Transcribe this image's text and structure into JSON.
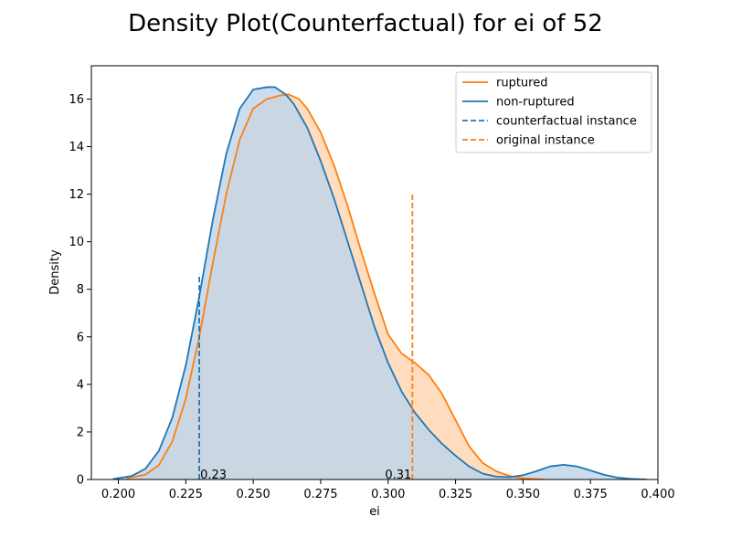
{
  "chart_data": {
    "type": "line",
    "title": "Density Plot(Counterfactual) for ei of 52",
    "xlabel": "ei",
    "ylabel": "Density",
    "xlim": [
      0.19,
      0.4
    ],
    "ylim": [
      0,
      17.4
    ],
    "x_ticks": [
      0.2,
      0.225,
      0.25,
      0.275,
      0.3,
      0.325,
      0.35,
      0.375,
      0.4
    ],
    "x_tick_labels": [
      "0.200",
      "0.225",
      "0.250",
      "0.275",
      "0.300",
      "0.325",
      "0.350",
      "0.375",
      "0.400"
    ],
    "y_ticks": [
      0,
      2,
      4,
      6,
      8,
      10,
      12,
      14,
      16
    ],
    "y_tick_labels": [
      "0",
      "2",
      "4",
      "6",
      "8",
      "10",
      "12",
      "14",
      "16"
    ],
    "grid": false,
    "legend_position": "top-right",
    "series": [
      {
        "name": "ruptured",
        "color": "#ff7f0e",
        "fill": "#ffd7b3",
        "x": [
          0.203,
          0.21,
          0.215,
          0.22,
          0.225,
          0.23,
          0.235,
          0.24,
          0.245,
          0.25,
          0.255,
          0.26,
          0.263,
          0.267,
          0.27,
          0.275,
          0.28,
          0.285,
          0.29,
          0.295,
          0.3,
          0.305,
          0.31,
          0.315,
          0.32,
          0.325,
          0.33,
          0.335,
          0.34,
          0.345,
          0.35,
          0.358
        ],
        "y": [
          0.05,
          0.2,
          0.6,
          1.6,
          3.4,
          6.0,
          9.1,
          12.0,
          14.3,
          15.6,
          16.0,
          16.15,
          16.2,
          16.0,
          15.6,
          14.6,
          13.2,
          11.5,
          9.6,
          7.8,
          6.1,
          5.3,
          4.9,
          4.4,
          3.6,
          2.5,
          1.4,
          0.7,
          0.35,
          0.15,
          0.05,
          0.0
        ]
      },
      {
        "name": "non-ruptured",
        "color": "#1f77b4",
        "fill": "#c1d6ea",
        "x": [
          0.198,
          0.205,
          0.21,
          0.215,
          0.22,
          0.225,
          0.23,
          0.235,
          0.24,
          0.245,
          0.25,
          0.255,
          0.258,
          0.262,
          0.265,
          0.27,
          0.275,
          0.28,
          0.285,
          0.29,
          0.295,
          0.3,
          0.305,
          0.31,
          0.315,
          0.32,
          0.325,
          0.33,
          0.335,
          0.34,
          0.345,
          0.35,
          0.355,
          0.36,
          0.365,
          0.37,
          0.375,
          0.38,
          0.385,
          0.39,
          0.396
        ],
        "y": [
          0.02,
          0.15,
          0.45,
          1.2,
          2.6,
          4.8,
          7.7,
          10.9,
          13.7,
          15.6,
          16.4,
          16.5,
          16.5,
          16.2,
          15.8,
          14.8,
          13.4,
          11.8,
          10.0,
          8.2,
          6.4,
          4.9,
          3.7,
          2.8,
          2.1,
          1.5,
          1.0,
          0.55,
          0.25,
          0.12,
          0.1,
          0.18,
          0.35,
          0.55,
          0.62,
          0.55,
          0.38,
          0.2,
          0.08,
          0.03,
          0.0
        ]
      }
    ],
    "vlines": [
      {
        "name": "counterfactual instance",
        "x": 0.23,
        "ymax": 8.65,
        "color": "#1f77b4",
        "label": "0.23"
      },
      {
        "name": "original instance",
        "x": 0.309,
        "ymax": 12.1,
        "color": "#ff7f0e",
        "label": "0.31"
      }
    ],
    "legend": [
      {
        "label": "ruptured",
        "color": "#ff7f0e",
        "style": "solid"
      },
      {
        "label": "non-ruptured",
        "color": "#1f77b4",
        "style": "solid"
      },
      {
        "label": "counterfactual instance",
        "color": "#1f77b4",
        "style": "dashed"
      },
      {
        "label": "original instance",
        "color": "#ff7f0e",
        "style": "dashed"
      }
    ]
  }
}
